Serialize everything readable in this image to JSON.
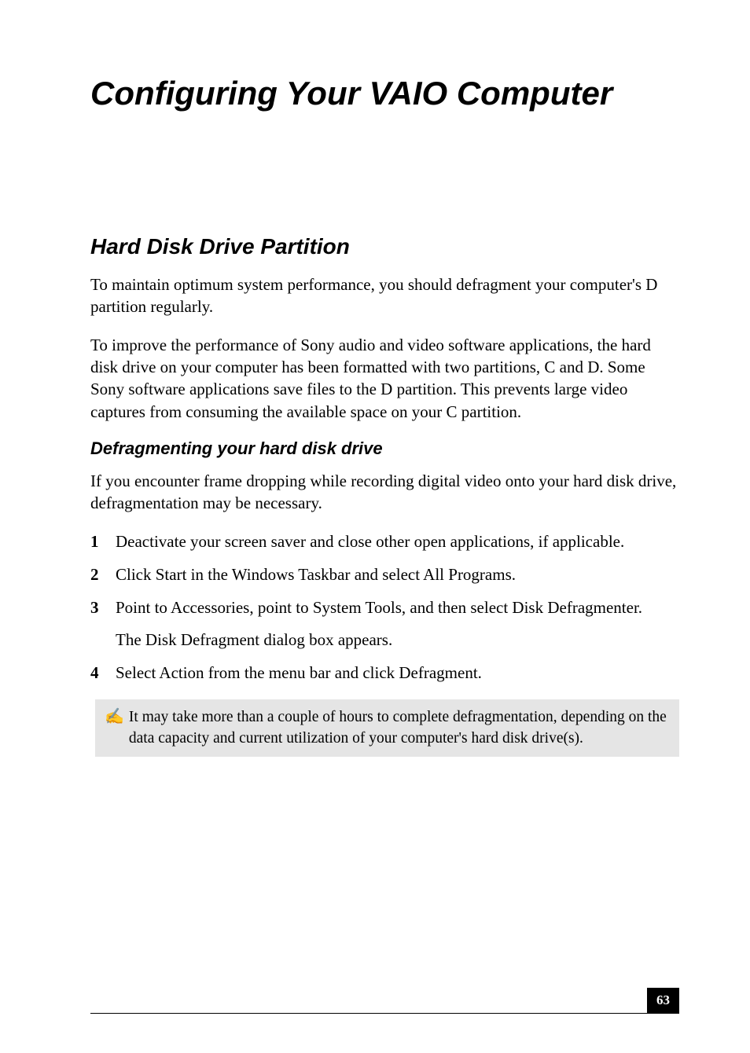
{
  "page": {
    "title": "Configuring Your VAIO Computer",
    "number": "63",
    "background_color": "#ffffff",
    "text_color": "#000000"
  },
  "section": {
    "title": "Hard Disk Drive Partition",
    "para1": "To maintain optimum system performance, you should defragment your computer's D partition regularly.",
    "para2": "To improve the performance of Sony audio and video software applications, the hard disk drive on your computer has been formatted with two partitions, C and D. Some Sony software applications save files to the D partition. This prevents large video captures from consuming the available space on your C partition."
  },
  "subsection": {
    "title": "Defragmenting your hard disk drive",
    "intro": "If you encounter frame dropping while recording digital video onto your hard disk drive, defragmentation may be necessary.",
    "steps": [
      {
        "num": "1",
        "text": "Deactivate your screen saver and close other open applications, if applicable."
      },
      {
        "num": "2",
        "text": "Click Start in the Windows Taskbar and select All Programs."
      },
      {
        "num": "3",
        "text": "Point to Accessories, point to System Tools, and then select Disk Defragmenter.",
        "sub": "The Disk Defragment dialog box appears."
      },
      {
        "num": "4",
        "text": "Select Action from the menu bar and click Defragment."
      }
    ]
  },
  "note": {
    "icon_glyph": "✍",
    "text": "It may take more than a couple of hours to complete defragmentation, depending on the data capacity and current utilization of your computer's hard disk drive(s).",
    "background_color": "#e5e5e5"
  },
  "typography": {
    "title_font": "Arial",
    "title_fontsize": 42,
    "section_fontsize": 28,
    "subsection_fontsize": 22,
    "body_font": "Times New Roman",
    "body_fontsize": 21,
    "note_fontsize": 19.5,
    "page_number_fontsize": 17
  },
  "colors": {
    "page_number_bg": "#000000",
    "page_number_fg": "#ffffff",
    "note_bg": "#e5e5e5",
    "rule_color": "#000000"
  }
}
